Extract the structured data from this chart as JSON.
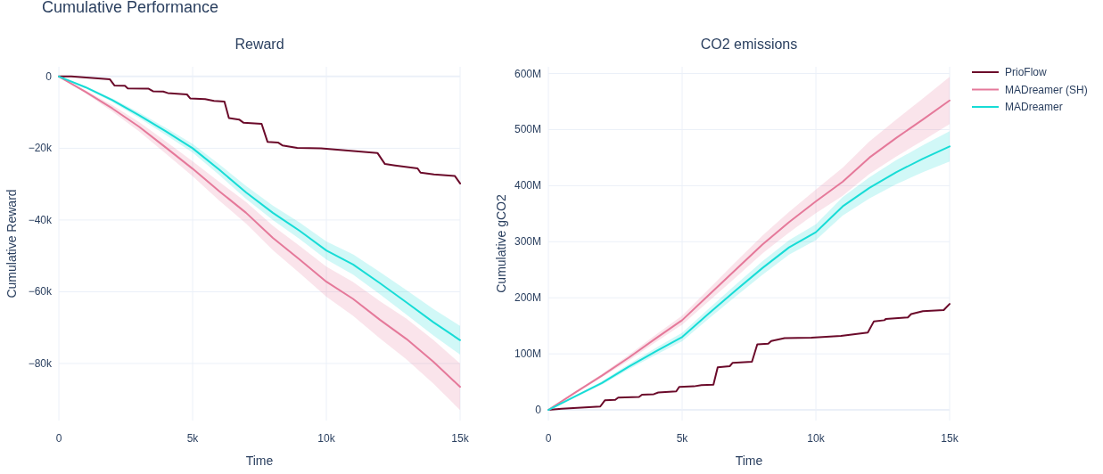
{
  "chart_data": [
    {
      "type": "line",
      "title": "Reward",
      "xlabel": "Time",
      "ylabel": "Cumulative Reward",
      "annotations": [
        "Cumulative Performance"
      ],
      "xlim": [
        0,
        15000
      ],
      "ylim": [
        -95900,
        2700
      ],
      "xticks": [
        0,
        {
          "value": 5000,
          "label": "5k"
        },
        {
          "value": 10000,
          "label": "10k"
        },
        {
          "value": 15000,
          "label": "15k"
        }
      ],
      "yticks": [
        0,
        {
          "value": -20000,
          "label": "−20k"
        },
        {
          "value": -40000,
          "label": "−40k"
        },
        {
          "value": -60000,
          "label": "−60k"
        },
        {
          "value": -80000,
          "label": "−80k"
        }
      ],
      "grid": true,
      "line_style": "solid",
      "series": [
        {
          "color": "#6b0a2a",
          "x": [
            0,
            467,
            1910,
            2077,
            2470,
            2577,
            3357,
            3520,
            3900,
            4070,
            4790,
            4910,
            5470,
            5800,
            6190,
            6357,
            6740,
            6910,
            7580,
            7800,
            8190,
            8357,
            8910,
            9800,
            10910,
            11910,
            12190,
            12570,
            13410,
            13520,
            14020,
            14800,
            15000
          ],
          "values": [
            0,
            0,
            -800,
            -2500,
            -2600,
            -3300,
            -3400,
            -4100,
            -4200,
            -4600,
            -5000,
            -6100,
            -6300,
            -6800,
            -7000,
            -11600,
            -12000,
            -12900,
            -13200,
            -18200,
            -18400,
            -19200,
            -19900,
            -20000,
            -20700,
            -21300,
            -24400,
            -24800,
            -25600,
            -26800,
            -27300,
            -27700,
            -29800
          ]
        },
        {
          "color": "#e5799a",
          "x": [
            0,
            1000,
            2000,
            3000,
            4000,
            5000,
            6000,
            7000,
            8000,
            9000,
            10000,
            11000,
            12000,
            13000,
            14000,
            15000
          ],
          "values": [
            0,
            -4300,
            -8900,
            -14000,
            -19800,
            -25700,
            -32000,
            -38000,
            -45000,
            -51000,
            -57200,
            -62000,
            -67800,
            -73200,
            -79500,
            -86500
          ],
          "lower": [
            0,
            -4700,
            -9800,
            -15300,
            -21500,
            -27800,
            -34600,
            -41000,
            -48400,
            -54800,
            -61400,
            -66700,
            -73000,
            -78900,
            -85600,
            -93000
          ],
          "upper": [
            0,
            -3900,
            -8000,
            -12700,
            -18100,
            -23600,
            -29400,
            -35000,
            -41600,
            -47200,
            -53000,
            -57300,
            -62600,
            -67500,
            -73400,
            -80000
          ]
        },
        {
          "color": "#17dcd6",
          "x": [
            0,
            1000,
            2000,
            3000,
            4000,
            5000,
            6000,
            7000,
            8000,
            9000,
            10000,
            11000,
            12000,
            13000,
            14000,
            15000
          ],
          "values": [
            0,
            -3000,
            -6600,
            -10800,
            -15300,
            -20000,
            -26000,
            -32300,
            -38000,
            -43000,
            -48500,
            -52400,
            -57600,
            -63000,
            -68500,
            -73500
          ],
          "lower": [
            0,
            -3300,
            -7100,
            -11600,
            -16300,
            -21200,
            -27500,
            -34100,
            -40000,
            -45300,
            -51000,
            -55200,
            -60700,
            -66400,
            -72200,
            -77500
          ],
          "upper": [
            0,
            -2700,
            -6100,
            -10000,
            -14300,
            -18800,
            -24500,
            -30500,
            -36000,
            -40700,
            -46000,
            -49600,
            -54500,
            -59600,
            -64800,
            -69500
          ]
        }
      ]
    },
    {
      "type": "line",
      "title": "CO2 emissions",
      "xlabel": "Time",
      "ylabel": "Cumulative gCO2",
      "xlim": [
        0,
        15000
      ],
      "ylim": [
        -19000000,
        612000000
      ],
      "xticks": [
        0,
        {
          "value": 5000,
          "label": "5k"
        },
        {
          "value": 10000,
          "label": "10k"
        },
        {
          "value": 15000,
          "label": "15k"
        }
      ],
      "yticks": [
        0,
        {
          "value": 100000000,
          "label": "100M"
        },
        {
          "value": 200000000,
          "label": "200M"
        },
        {
          "value": 300000000,
          "label": "300M"
        },
        {
          "value": 400000000,
          "label": "400M"
        },
        {
          "value": 500000000,
          "label": "500M"
        },
        {
          "value": 600000000,
          "label": "600M"
        }
      ],
      "grid": true,
      "legend": "top right",
      "line_style": "solid",
      "series": [
        {
          "name": "PrioFlow",
          "color": "#6b0a2a",
          "x": [
            0,
            500,
            1940,
            2110,
            2500,
            2610,
            3390,
            3500,
            3940,
            4110,
            4780,
            4890,
            5440,
            5720,
            6170,
            6330,
            6780,
            6890,
            7610,
            7810,
            8220,
            8330,
            8830,
            9830,
            10940,
            11940,
            12170,
            12560,
            12610,
            13440,
            13560,
            14000,
            14780,
            15000
          ],
          "values": [
            0,
            2000000,
            6000000,
            17000000,
            18000000,
            22000000,
            23000000,
            27000000,
            28000000,
            31000000,
            33000000,
            41000000,
            42000000,
            44000000,
            45000000,
            76000000,
            78000000,
            84000000,
            86000000,
            117000000,
            118000000,
            123000000,
            128000000,
            129000000,
            132000000,
            138000000,
            158000000,
            160000000,
            162000000,
            165000000,
            171000000,
            176000000,
            178000000,
            189000000
          ]
        },
        {
          "name": "MADreamer (SH)",
          "color": "#e5799a",
          "x": [
            0,
            1000,
            2000,
            3000,
            4000,
            5000,
            6000,
            7000,
            8000,
            9000,
            10000,
            11000,
            12000,
            13000,
            14000,
            15000
          ],
          "values": [
            0,
            31000000,
            61000000,
            93000000,
            127000000,
            160000000,
            205000000,
            250000000,
            295000000,
            335000000,
            372000000,
            407000000,
            450000000,
            485000000,
            518000000,
            552000000
          ],
          "lower": [
            0,
            29500000,
            58000000,
            88000000,
            120500000,
            152000000,
            194000000,
            236000000,
            279000000,
            316500000,
            351000000,
            382000000,
            421000000,
            452000000,
            480500000,
            510000000
          ],
          "upper": [
            0,
            32500000,
            64000000,
            98000000,
            133500000,
            168000000,
            216000000,
            264000000,
            311000000,
            353500000,
            393000000,
            432000000,
            479000000,
            518000000,
            555500000,
            594000000
          ]
        },
        {
          "name": "MADreamer",
          "color": "#17dcd6",
          "x": [
            0,
            1000,
            2000,
            3000,
            4000,
            5000,
            6000,
            7000,
            8000,
            9000,
            10000,
            11000,
            12000,
            13000,
            14000,
            15000
          ],
          "values": [
            0,
            24000000,
            48000000,
            77000000,
            104000000,
            130000000,
            172000000,
            213000000,
            253000000,
            290000000,
            317000000,
            363000000,
            396000000,
            424000000,
            448000000,
            470000000
          ],
          "lower": [
            0,
            22500000,
            45000000,
            72500000,
            98000000,
            122500000,
            163000000,
            202500000,
            241000000,
            277000000,
            303000000,
            346500000,
            377000000,
            402500000,
            424000000,
            443000000
          ],
          "upper": [
            0,
            25500000,
            51000000,
            81500000,
            110000000,
            137500000,
            181000000,
            223500000,
            265000000,
            303000000,
            331000000,
            379500000,
            415000000,
            445500000,
            472000000,
            497000000
          ]
        }
      ]
    }
  ]
}
